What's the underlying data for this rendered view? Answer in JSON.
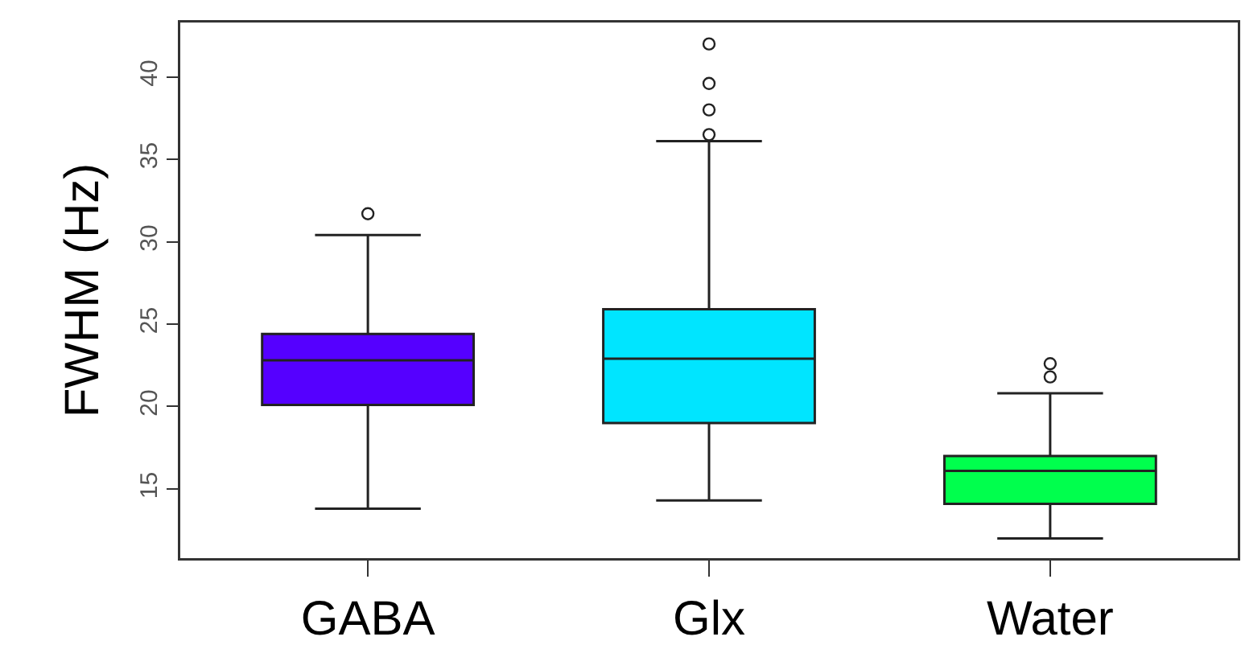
{
  "chart_data": {
    "type": "box",
    "ylabel": "FWHM (Hz)",
    "categories": [
      "GABA",
      "Glx",
      "Water"
    ],
    "colors": [
      "#5500ff",
      "#00e5ff",
      "#00ff4d"
    ],
    "boxes": [
      {
        "low": 13.8,
        "q1": 20.1,
        "median": 22.8,
        "q3": 24.4,
        "high": 30.4,
        "outliers": [
          31.7
        ]
      },
      {
        "low": 14.3,
        "q1": 19.0,
        "median": 22.9,
        "q3": 25.9,
        "high": 36.1,
        "outliers": [
          36.5,
          38.0,
          39.6,
          42.0
        ]
      },
      {
        "low": 12.0,
        "q1": 14.1,
        "median": 16.1,
        "q3": 17.0,
        "high": 20.8,
        "outliers": [
          21.8,
          22.6
        ]
      }
    ],
    "ylim": [
      10.8,
      43.3
    ],
    "yticks": [
      15,
      20,
      25,
      30,
      35,
      40
    ],
    "grid": false
  }
}
